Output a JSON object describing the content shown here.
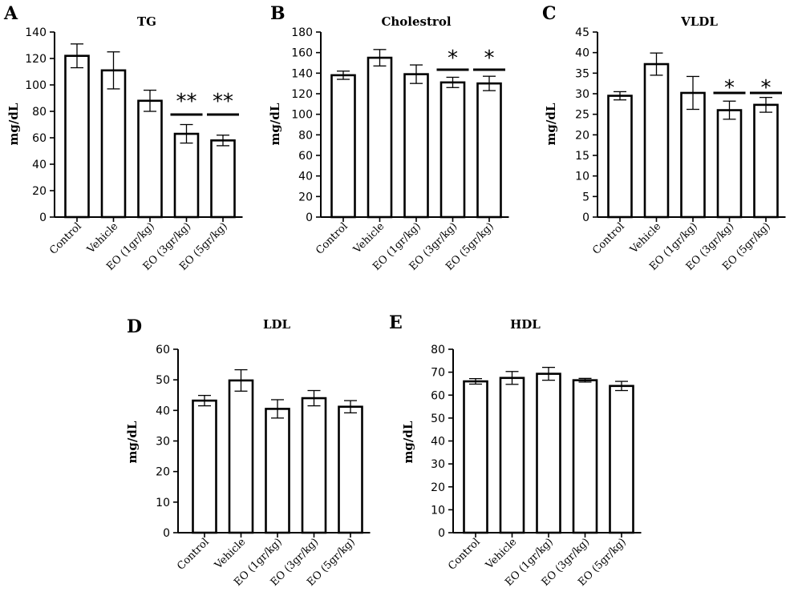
{
  "chart_data": [
    {
      "panel": "A",
      "type": "bar",
      "title": "TG",
      "ylabel": "mg/dL",
      "xlabel": "",
      "ylim": [
        0,
        140
      ],
      "yticks": [
        0,
        20,
        40,
        60,
        80,
        100,
        120,
        140
      ],
      "categories": [
        "Control",
        "Vehicle",
        "EO (1gr/kg)",
        "EO (3gr/kg)",
        "EO (5gr/kg)"
      ],
      "values": [
        122,
        111,
        88,
        63,
        58
      ],
      "errors": [
        9,
        14,
        8,
        7,
        4
      ],
      "significance": [
        "",
        "",
        "",
        "**",
        "**"
      ]
    },
    {
      "panel": "B",
      "type": "bar",
      "title": "Cholestrol",
      "ylabel": "mg/dL",
      "xlabel": "",
      "ylim": [
        0,
        180
      ],
      "yticks": [
        0,
        20,
        40,
        60,
        80,
        100,
        120,
        140,
        160,
        180
      ],
      "categories": [
        "Control",
        "Vehicle",
        "EO (1gr/kg)",
        "EO (3gr/kg)",
        "EO (5gr/kg)"
      ],
      "values": [
        138,
        155,
        139,
        131,
        130
      ],
      "errors": [
        4,
        8,
        9,
        5,
        7
      ],
      "significance": [
        "",
        "",
        "",
        "*",
        "*"
      ]
    },
    {
      "panel": "C",
      "type": "bar",
      "title": "VLDL",
      "ylabel": "mg/dL",
      "xlabel": "",
      "ylim": [
        0,
        45
      ],
      "yticks": [
        0,
        5,
        10,
        15,
        20,
        25,
        30,
        35,
        40,
        45
      ],
      "categories": [
        "Control",
        "Vehicle",
        "EO (1gr/kg)",
        "EO (3gr/kg)",
        "EO (5gr/kg)"
      ],
      "values": [
        29.5,
        37.2,
        30.2,
        26,
        27.3
      ],
      "errors": [
        1,
        2.7,
        4,
        2.2,
        1.8
      ],
      "significance": [
        "",
        "",
        "",
        "*",
        "*"
      ]
    },
    {
      "panel": "D",
      "type": "bar",
      "title": "LDL",
      "ylabel": "mg/dL",
      "xlabel": "",
      "ylim": [
        0,
        60
      ],
      "yticks": [
        0,
        10,
        20,
        30,
        40,
        50,
        60
      ],
      "categories": [
        "Control",
        "Vehicle",
        "EO (1gr/kg)",
        "EO (3gr/kg)",
        "EO (5gr/kg)"
      ],
      "values": [
        43.2,
        49.8,
        40.5,
        44,
        41.2
      ],
      "errors": [
        1.7,
        3.5,
        3,
        2.5,
        2
      ],
      "significance": [
        "",
        "",
        "",
        "",
        ""
      ]
    },
    {
      "panel": "E",
      "type": "bar",
      "title": "HDL",
      "ylabel": "mg/dL",
      "xlabel": "",
      "ylim": [
        0,
        80
      ],
      "yticks": [
        0,
        10,
        20,
        30,
        40,
        50,
        60,
        70,
        80
      ],
      "categories": [
        "Control",
        "Vehicle",
        "EO (1gr/kg)",
        "EO (3gr/kg)",
        "EO (5gr/kg)"
      ],
      "values": [
        66,
        67.5,
        69.3,
        66.5,
        64
      ],
      "errors": [
        1.2,
        2.8,
        2.8,
        0.8,
        2
      ],
      "significance": [
        "",
        "",
        "",
        "",
        ""
      ]
    }
  ]
}
